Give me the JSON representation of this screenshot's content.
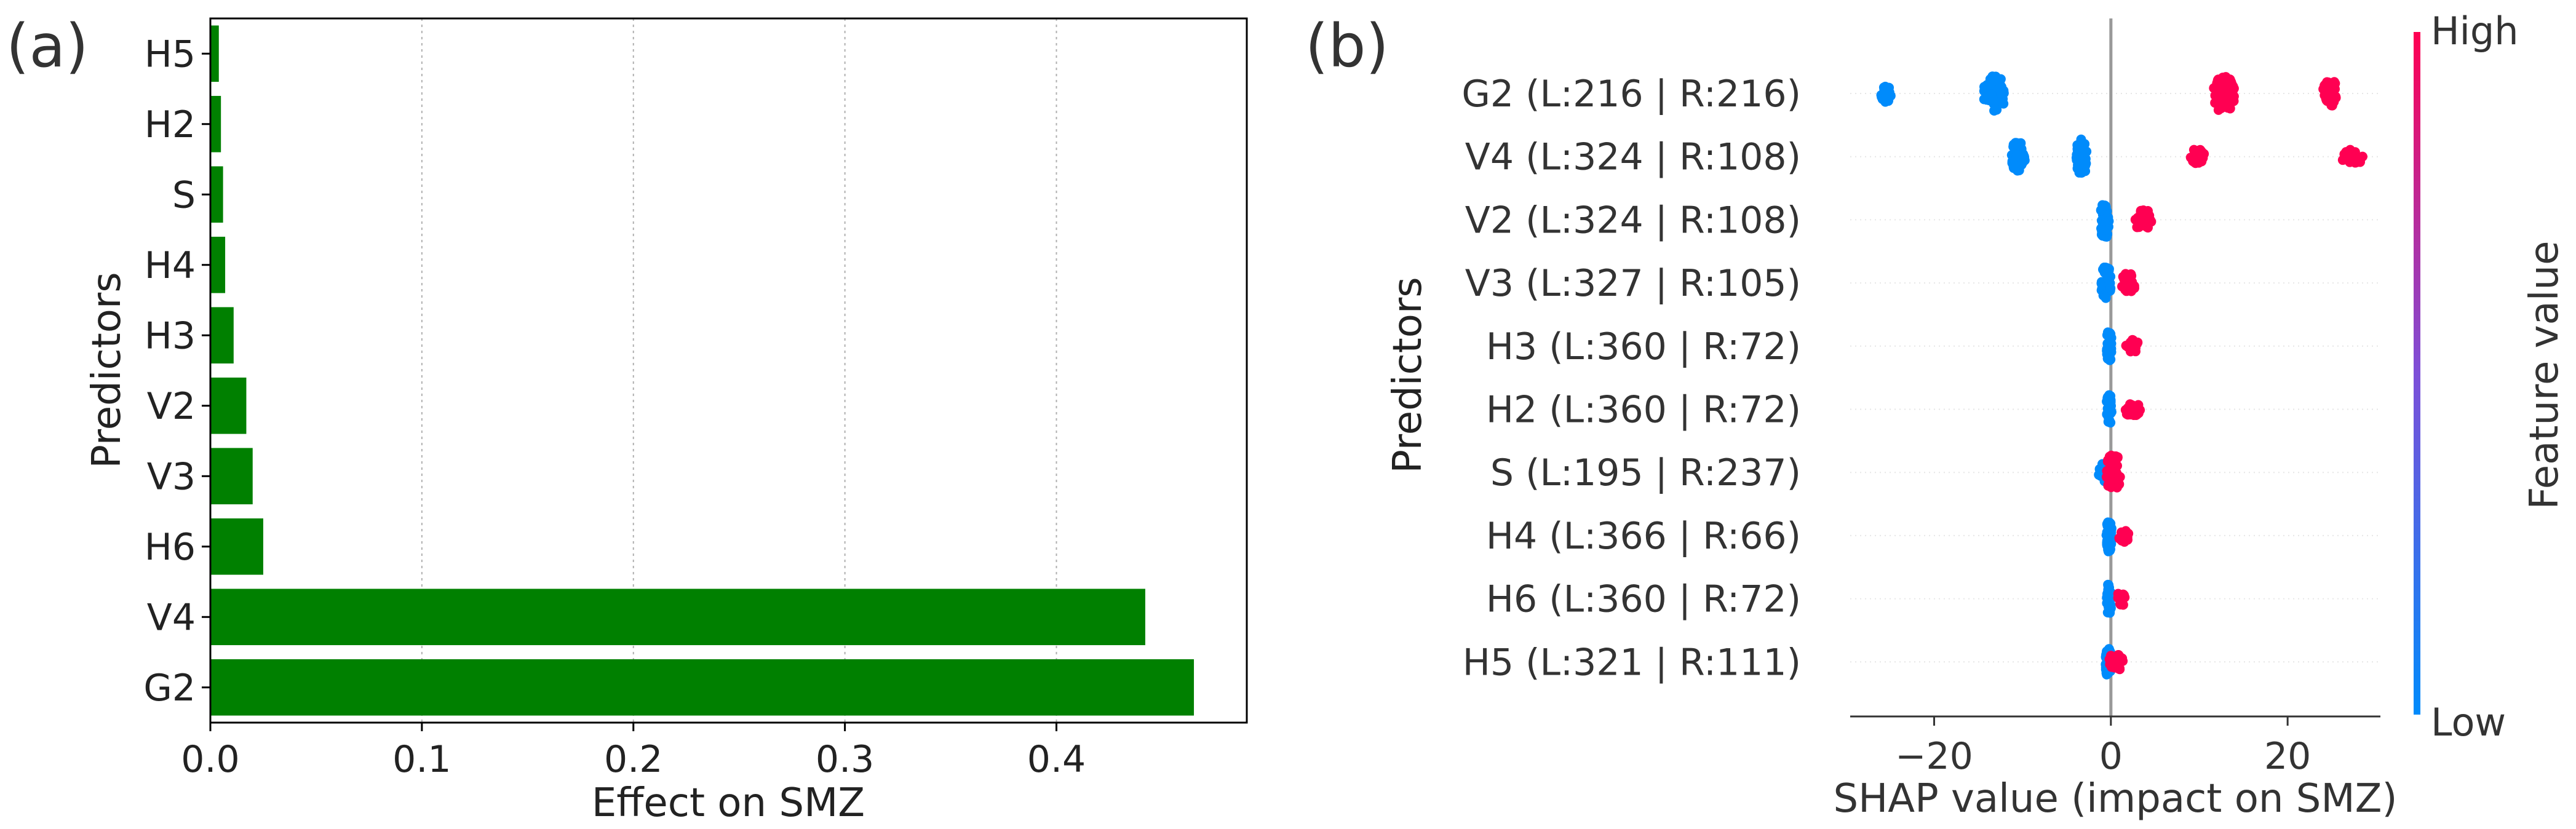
{
  "panel_a": {
    "label": "(a)",
    "xlabel": "Effect on SMZ",
    "ylabel": "Predictors"
  },
  "panel_b": {
    "label": "(b)",
    "xlabel": "SHAP value (impact on SMZ)",
    "ylabel": "Predictors",
    "colorbar": {
      "label": "Feature value",
      "high": "High",
      "low": "Low"
    }
  },
  "colors": {
    "bar": "#008000",
    "shap_high": "#ff0052",
    "shap_low": "#008bfb",
    "zero_line": "#999999"
  },
  "chart_data": [
    {
      "type": "bar",
      "orientation": "horizontal",
      "ylabel": "Predictors",
      "xlabel": "Effect on SMZ",
      "categories": [
        "H5",
        "H2",
        "S",
        "H4",
        "H3",
        "V2",
        "V3",
        "H6",
        "V4",
        "G2"
      ],
      "values": [
        0.004,
        0.005,
        0.006,
        0.007,
        0.011,
        0.017,
        0.02,
        0.025,
        0.442,
        0.465
      ],
      "xlim": [
        0,
        0.49
      ],
      "xticks": [
        0.0,
        0.1,
        0.2,
        0.3,
        0.4
      ],
      "xtick_labels": [
        "0.0",
        "0.1",
        "0.2",
        "0.3",
        "0.4"
      ],
      "grid": "vertical-dotted"
    },
    {
      "type": "scatter",
      "subtype": "shap-beeswarm",
      "ylabel": "Predictors",
      "xlabel": "SHAP value (impact on SMZ)",
      "features": [
        "G2 (L:216 | R:216)",
        "V4 (L:324 | R:108)",
        "V2 (L:324 | R:108)",
        "V3 (L:327 | R:105)",
        "H3 (L:360 | R:72)",
        "H2 (L:360 | R:72)",
        "S (L:195 | R:237)",
        "H4 (L:366 | R:66)",
        "H6 (L:360 | R:72)",
        "H5 (L:321 | R:111)"
      ],
      "clusters": [
        [
          {
            "x": -25.5,
            "c": "low",
            "w": 0.6,
            "h": 0.28
          },
          {
            "x": -13.2,
            "c": "low",
            "w": 1.2,
            "h": 0.55
          },
          {
            "x": 12.8,
            "c": "high",
            "w": 1.2,
            "h": 0.55
          },
          {
            "x": 24.8,
            "c": "high",
            "w": 0.8,
            "h": 0.4
          }
        ],
        [
          {
            "x": -10.5,
            "c": "low",
            "w": 0.8,
            "h": 0.45
          },
          {
            "x": -3.3,
            "c": "low",
            "w": 0.6,
            "h": 0.55
          },
          {
            "x": 9.8,
            "c": "high",
            "w": 0.8,
            "h": 0.25
          },
          {
            "x": 27.3,
            "c": "high",
            "w": 1.2,
            "h": 0.22
          }
        ],
        [
          {
            "x": -0.7,
            "c": "low",
            "w": 0.5,
            "h": 0.55
          },
          {
            "x": 3.7,
            "c": "high",
            "w": 1.0,
            "h": 0.3
          }
        ],
        [
          {
            "x": -0.5,
            "c": "low",
            "w": 0.6,
            "h": 0.5
          },
          {
            "x": 2.0,
            "c": "high",
            "w": 0.8,
            "h": 0.3
          }
        ],
        [
          {
            "x": -0.2,
            "c": "low",
            "w": 0.3,
            "h": 0.45
          },
          {
            "x": 2.4,
            "c": "high",
            "w": 0.8,
            "h": 0.2
          }
        ],
        [
          {
            "x": -0.2,
            "c": "low",
            "w": 0.3,
            "h": 0.45
          },
          {
            "x": 2.5,
            "c": "high",
            "w": 1.0,
            "h": 0.2
          }
        ],
        [
          {
            "x": -0.4,
            "c": "low",
            "w": 1.0,
            "h": 0.3
          },
          {
            "x": 0.3,
            "c": "high",
            "w": 0.8,
            "h": 0.55
          }
        ],
        [
          {
            "x": -0.2,
            "c": "low",
            "w": 0.3,
            "h": 0.5
          },
          {
            "x": 1.5,
            "c": "high",
            "w": 0.6,
            "h": 0.2
          }
        ],
        [
          {
            "x": -0.2,
            "c": "low",
            "w": 0.3,
            "h": 0.45
          },
          {
            "x": 1.2,
            "c": "high",
            "w": 0.5,
            "h": 0.2
          }
        ],
        [
          {
            "x": -0.3,
            "c": "low",
            "w": 0.3,
            "h": 0.45
          },
          {
            "x": 0.6,
            "c": "high",
            "w": 0.8,
            "h": 0.25
          }
        ]
      ],
      "xlim": [
        -29.5,
        30.5
      ],
      "xticks": [
        -20,
        0,
        20
      ],
      "xtick_labels": [
        "−20",
        "0",
        "20"
      ],
      "colorbar": {
        "label": "Feature value",
        "top": "High",
        "bottom": "Low"
      }
    }
  ]
}
